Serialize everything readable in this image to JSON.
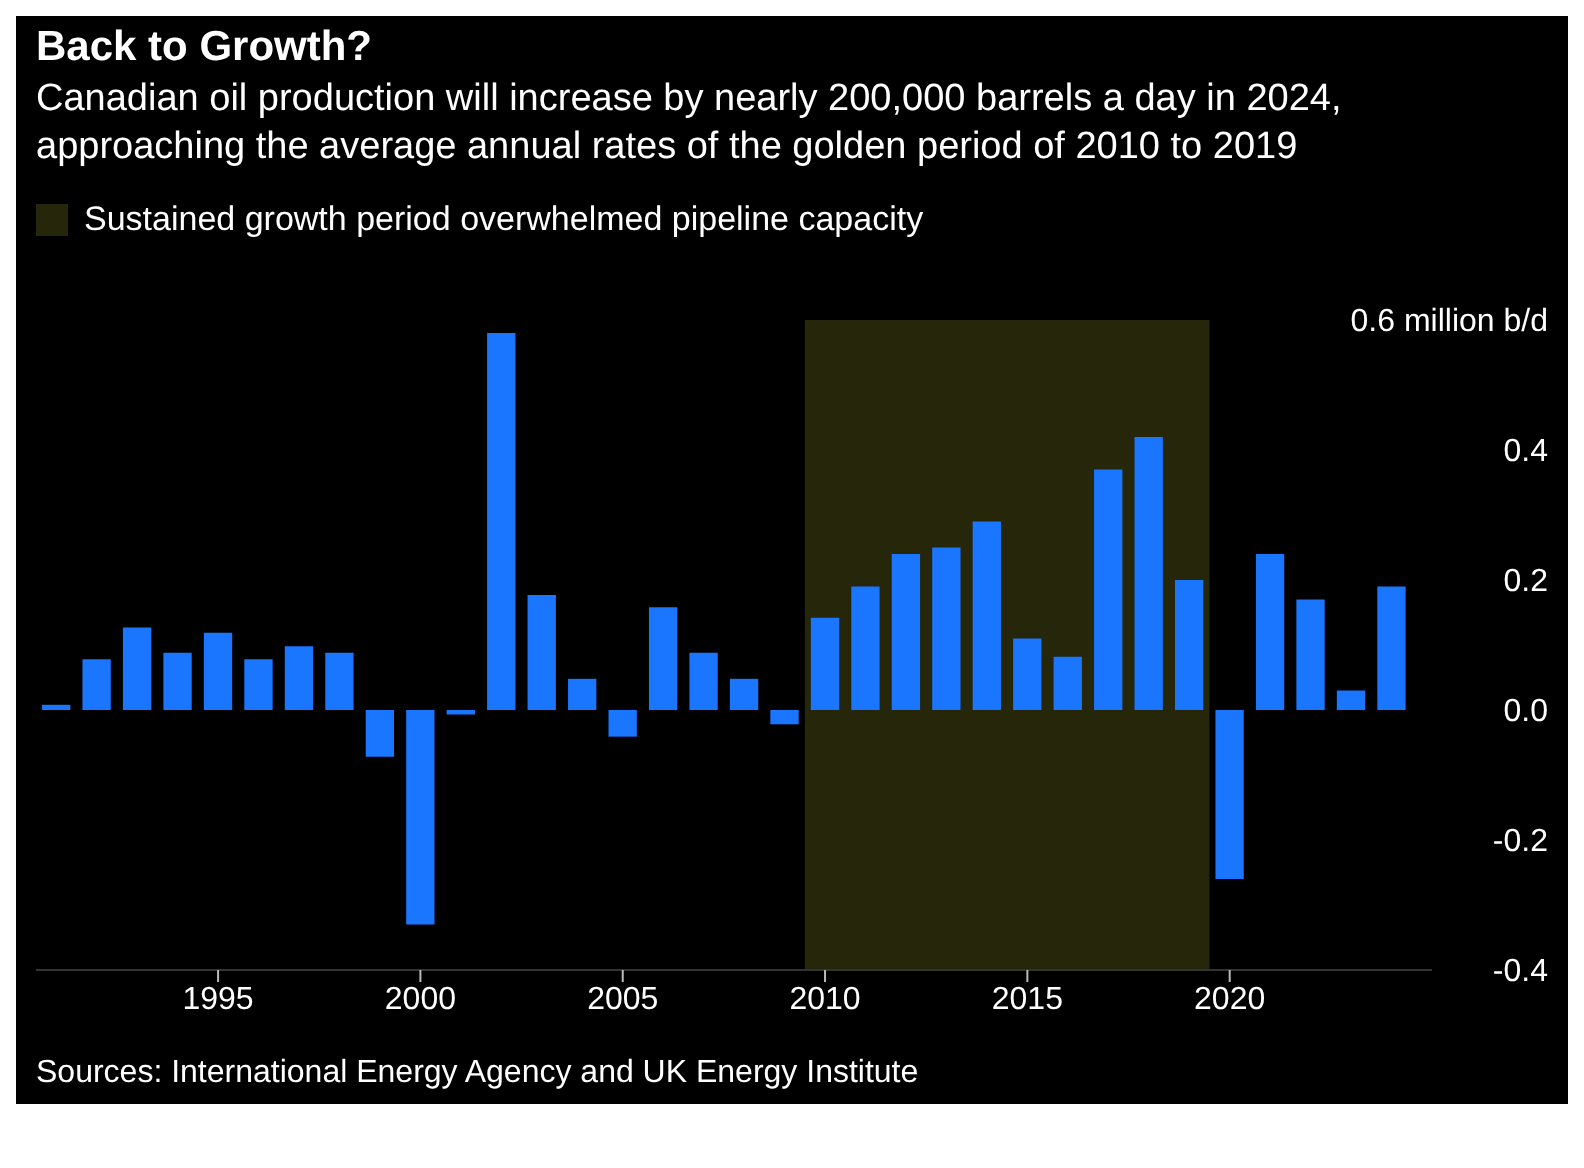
{
  "chart_data": {
    "type": "bar",
    "title": "Back to Growth?",
    "subtitle": "Canadian oil production will increase by nearly 200,000 barrels a day in 2024, approaching the average annual rates of the golden period of 2010 to 2019",
    "x": [
      1991,
      1992,
      1993,
      1994,
      1995,
      1996,
      1997,
      1998,
      1999,
      2000,
      2001,
      2002,
      2003,
      2004,
      2005,
      2006,
      2007,
      2008,
      2009,
      2010,
      2011,
      2012,
      2013,
      2014,
      2015,
      2016,
      2017,
      2018,
      2019,
      2020,
      2021,
      2022,
      2023,
      2024
    ],
    "values": [
      0.008,
      0.078,
      0.127,
      0.088,
      0.119,
      0.078,
      0.098,
      0.088,
      -0.072,
      -0.33,
      -0.007,
      0.58,
      0.177,
      0.048,
      -0.041,
      0.158,
      0.088,
      0.048,
      -0.022,
      0.142,
      0.19,
      0.24,
      0.25,
      0.29,
      0.11,
      0.082,
      0.37,
      0.42,
      0.2,
      -0.26,
      0.24,
      0.17,
      0.03,
      0.19
    ],
    "color": "#1a75ff",
    "xlim": [
      1990.5,
      2025
    ],
    "xticks": [
      1995,
      2000,
      2005,
      2010,
      2015,
      2020
    ],
    "ylim": [
      -0.4,
      0.6
    ],
    "yticks": [
      -0.4,
      -0.2,
      {
        "value": 0,
        "label": "0.0"
      },
      0.2,
      0.4,
      {
        "value": 0.6,
        "label": "0.6 million b/d"
      }
    ],
    "bands": [
      {
        "axis": "x",
        "from": 2009.5,
        "to": 2019.5,
        "label": "Sustained growth period overwhelmed pipeline capacity",
        "color": "#26260a"
      }
    ],
    "legend": "top left",
    "grid": false,
    "annotations": [
      "Sources: International Energy Agency and UK Energy Institute"
    ]
  }
}
